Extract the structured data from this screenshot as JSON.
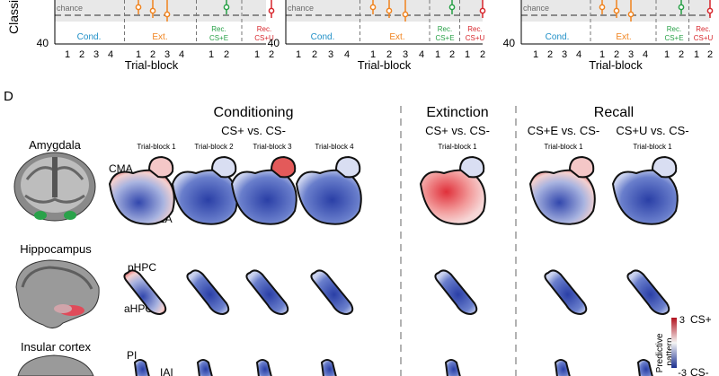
{
  "top_panels": {
    "y_axis_partial_label": "Classi",
    "y_tick_40": "40",
    "chance_label": "chance",
    "x_tick_labels": [
      "1",
      "2",
      "3",
      "4",
      "1",
      "2",
      "3",
      "4",
      "1",
      "2",
      "1",
      "2"
    ],
    "x_axis_label": "Trial-block",
    "phase_labels": {
      "cond": "Cond.",
      "ext": "Ext.",
      "rec_e": "Rec.\nCS+E",
      "rec_u": "Rec.\nCS+U"
    },
    "colors": {
      "cond": "#1f8fc7",
      "ext": "#f0831e",
      "rec_e": "#27a046",
      "rec_u": "#d7262c",
      "chance": "#8a8a8a"
    }
  },
  "panel_d": {
    "letter": "D",
    "headers": {
      "conditioning": "Conditioning",
      "extinction": "Extinction",
      "recall": "Recall"
    },
    "contrasts": {
      "cs_plus_minus": "CS+ vs. CS-",
      "ext_cs_plus_minus": "CS+ vs. CS-",
      "cs_e_minus": "CS+E vs. CS-",
      "cs_u_minus": "CS+U vs. CS-"
    },
    "trial_blocks": [
      "Trial-block 1",
      "Trial-block 2",
      "Trial-block 3",
      "Trial-block 4",
      "Trial-block 1",
      "Trial-block 1",
      "Trial-block 1"
    ],
    "regions": [
      {
        "name": "Amygdala",
        "sub_labels": [
          "CMA",
          "BLA"
        ]
      },
      {
        "name": "Hippocampus",
        "sub_labels": [
          "pHPC",
          "aHPC"
        ]
      },
      {
        "name": "Insular cortex",
        "sub_labels": [
          "PI",
          "IAI"
        ]
      }
    ],
    "colorbar": {
      "title": "Predictive\npattern",
      "max_label": "3",
      "min_label": "-3",
      "top_class": "CS+",
      "bottom_class": "CS-",
      "high_color": "#c8102e",
      "low_color": "#1f3a9c"
    }
  }
}
